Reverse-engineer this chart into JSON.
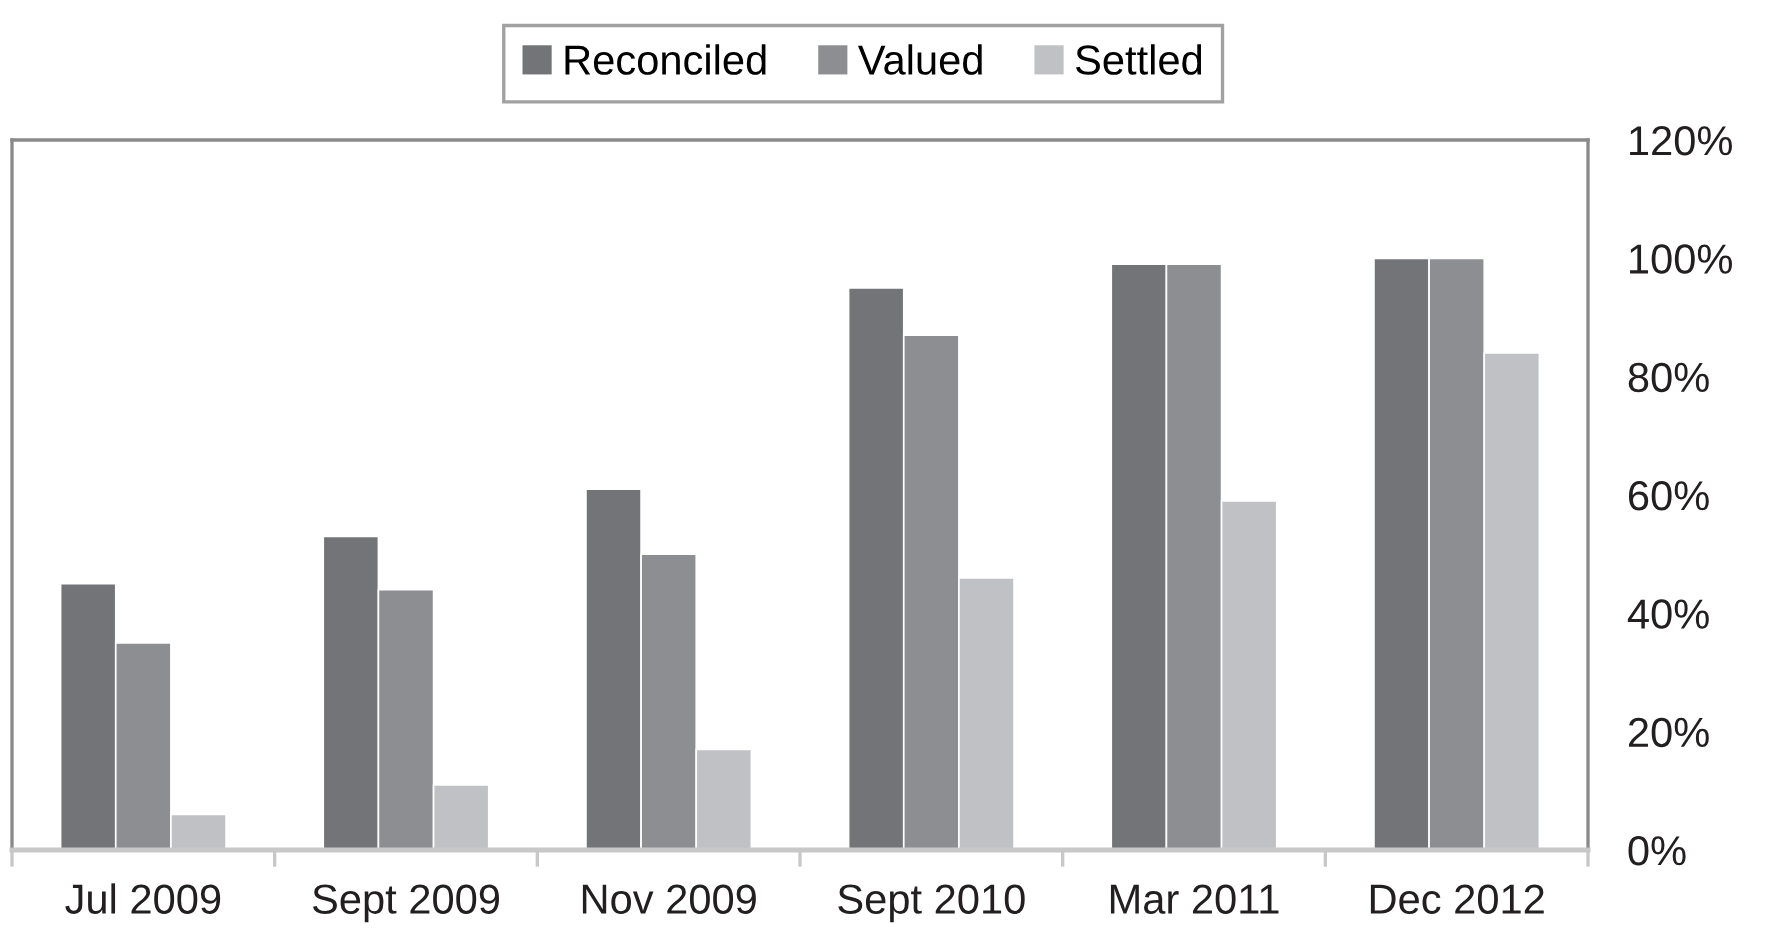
{
  "chart_data": {
    "type": "bar",
    "categories": [
      "Jul 2009",
      "Sept 2009",
      "Nov 2009",
      "Sept 2010",
      "Mar 2011",
      "Dec 2012"
    ],
    "series": [
      {
        "name": "Reconciled",
        "color": "#737478",
        "values": [
          45,
          53,
          61,
          95,
          99,
          100
        ]
      },
      {
        "name": "Valued",
        "color": "#8d8e92",
        "values": [
          35,
          44,
          50,
          87,
          99,
          100
        ]
      },
      {
        "name": "Settled",
        "color": "#c0c1c5",
        "values": [
          6,
          11,
          17,
          46,
          59,
          84
        ]
      }
    ],
    "ylim": [
      0,
      120
    ],
    "yticks": [
      {
        "value": 0,
        "label": "0%"
      },
      {
        "value": 20,
        "label": "20%"
      },
      {
        "value": 40,
        "label": "40%"
      },
      {
        "value": 60,
        "label": "60%"
      },
      {
        "value": 80,
        "label": "80%"
      },
      {
        "value": 100,
        "label": "100%"
      },
      {
        "value": 120,
        "label": "120%"
      }
    ],
    "legend": "top",
    "grid": false
  }
}
